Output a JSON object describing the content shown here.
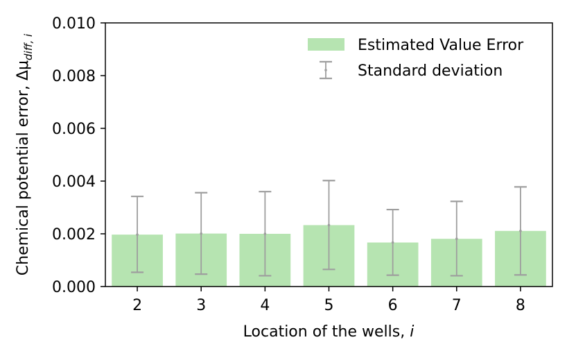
{
  "chart_data": {
    "type": "bar",
    "categories": [
      "2",
      "3",
      "4",
      "5",
      "6",
      "7",
      "8"
    ],
    "values": [
      0.00197,
      0.00201,
      0.002,
      0.00233,
      0.00167,
      0.00181,
      0.00211
    ],
    "error_low": [
      0.00054,
      0.00047,
      0.00041,
      0.00065,
      0.00043,
      0.00041,
      0.00044
    ],
    "error_high": [
      0.00342,
      0.00356,
      0.0036,
      0.00402,
      0.00292,
      0.00323,
      0.00378
    ],
    "ylim": [
      0,
      0.01
    ],
    "yticks": [
      "0.000",
      "0.002",
      "0.004",
      "0.006",
      "0.008",
      "0.010"
    ],
    "xlabel_prefix": "Location of the wells, ",
    "xlabel_var": "i",
    "ylabel_prefix": "Chemical potential error, Δμ",
    "ylabel_sub": "diff, i",
    "legend": {
      "bar_label": "Estimated Value Error",
      "error_label": "Standard deviation",
      "placement": "top-right"
    },
    "colors": {
      "bar": "#b6e4b1",
      "error": "#9e9e9e"
    },
    "grid": false
  }
}
